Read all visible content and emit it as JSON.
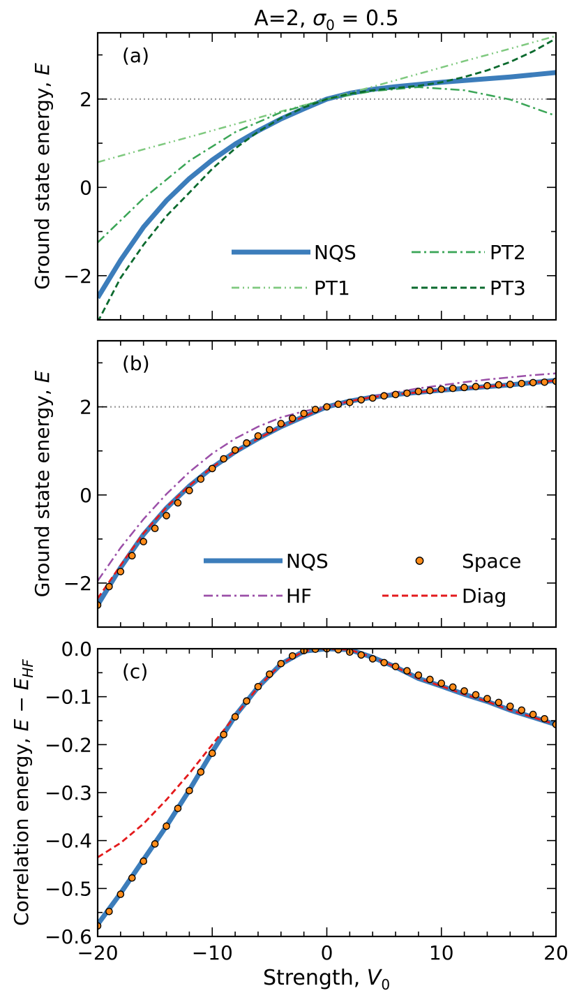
{
  "figure_title": "A=2, σ₀ = 0.5",
  "colors": {
    "nqs": "#3c7dbb",
    "pt1": "#7fc97f",
    "pt2": "#3aa556",
    "pt3": "#0b6a2e",
    "hf": "#9b4fa8",
    "diag": "#e31a1c",
    "space_fill": "#ff8c1a",
    "ref": "#999999"
  },
  "chart_data": [
    {
      "panel": "(a)",
      "type": "line",
      "xlabel": "Strength, V0",
      "ylabel": "Ground state energy, E",
      "xlim": [
        -20,
        20
      ],
      "ylim": [
        -3,
        3.5
      ],
      "yticks": [
        -2,
        0,
        2
      ],
      "ytick_labels": [
        "−2",
        "0",
        "2"
      ],
      "reference_line": {
        "y": 2,
        "style": "dotted"
      },
      "legend": {
        "placement": "lower-right",
        "columns": 2,
        "entries": [
          "NQS",
          "PT2",
          "PT1",
          "PT3"
        ]
      },
      "series": [
        {
          "name": "NQS",
          "style": "solid-thick",
          "color_key": "nqs",
          "x": [
            -20,
            -18,
            -16,
            -14,
            -12,
            -10,
            -8,
            -6,
            -4,
            -2,
            0,
            2,
            4,
            6,
            8,
            10,
            12,
            14,
            16,
            18,
            20
          ],
          "y": [
            -2.5,
            -1.65,
            -0.9,
            -0.3,
            0.2,
            0.62,
            0.98,
            1.28,
            1.55,
            1.78,
            2.0,
            2.13,
            2.22,
            2.28,
            2.33,
            2.38,
            2.42,
            2.46,
            2.5,
            2.55,
            2.6
          ]
        },
        {
          "name": "PT1",
          "style": "dash-dot-dot",
          "color_key": "pt1",
          "x": [
            -20,
            -16,
            -12,
            -8,
            -4,
            0,
            4,
            8,
            12,
            16,
            20
          ],
          "y": [
            0.57,
            0.86,
            1.14,
            1.43,
            1.72,
            2.0,
            2.28,
            2.57,
            2.86,
            3.14,
            3.43
          ]
        },
        {
          "name": "PT2",
          "style": "dash-dot",
          "color_key": "pt2",
          "x": [
            -20,
            -16,
            -12,
            -8,
            -4,
            0,
            4,
            8,
            12,
            16,
            20
          ],
          "y": [
            -1.25,
            -0.25,
            0.6,
            1.25,
            1.7,
            2.0,
            2.18,
            2.27,
            2.2,
            1.99,
            1.62
          ]
        },
        {
          "name": "PT3",
          "style": "dashed",
          "color_key": "pt3",
          "x": [
            -20,
            -18,
            -16,
            -14,
            -12,
            -10,
            -8,
            -6,
            -4,
            -2,
            0,
            2,
            4,
            6,
            8,
            10,
            12,
            14,
            16,
            18,
            20
          ],
          "y": [
            -3.05,
            -2.05,
            -1.3,
            -0.65,
            -0.12,
            0.42,
            0.88,
            1.26,
            1.57,
            1.81,
            2.0,
            2.12,
            2.2,
            2.25,
            2.3,
            2.38,
            2.5,
            2.65,
            2.84,
            3.08,
            3.37
          ]
        }
      ]
    },
    {
      "panel": "(b)",
      "type": "line",
      "xlabel": "Strength, V0",
      "ylabel": "Ground state energy, E",
      "xlim": [
        -20,
        20
      ],
      "ylim": [
        -3,
        3.5
      ],
      "yticks": [
        -2,
        0,
        2
      ],
      "ytick_labels": [
        "−2",
        "0",
        "2"
      ],
      "reference_line": {
        "y": 2,
        "style": "dotted"
      },
      "legend": {
        "placement": "lower-right",
        "columns": 2,
        "entries": [
          "NQS",
          "Space",
          "HF",
          "Diag"
        ]
      },
      "series": [
        {
          "name": "NQS",
          "style": "solid-thick",
          "color_key": "nqs",
          "x": [
            -20,
            -18,
            -16,
            -14,
            -12,
            -10,
            -8,
            -6,
            -4,
            -2,
            0,
            2,
            4,
            6,
            8,
            10,
            12,
            14,
            16,
            18,
            20
          ],
          "y": [
            -2.5,
            -1.65,
            -0.9,
            -0.3,
            0.2,
            0.62,
            0.98,
            1.28,
            1.55,
            1.78,
            2.0,
            2.13,
            2.22,
            2.28,
            2.33,
            2.38,
            2.42,
            2.46,
            2.5,
            2.55,
            2.6
          ]
        },
        {
          "name": "HF",
          "style": "dash-dot",
          "color_key": "hf",
          "x": [
            -20,
            -18,
            -16,
            -14,
            -12,
            -10,
            -8,
            -6,
            -4,
            -2,
            0,
            2,
            4,
            6,
            8,
            10,
            12,
            14,
            16,
            18,
            20
          ],
          "y": [
            -1.95,
            -1.2,
            -0.55,
            0.02,
            0.52,
            0.94,
            1.28,
            1.55,
            1.76,
            1.9,
            2.0,
            2.13,
            2.24,
            2.33,
            2.42,
            2.49,
            2.56,
            2.62,
            2.67,
            2.72,
            2.76
          ]
        },
        {
          "name": "Diag",
          "style": "dashed",
          "color_key": "diag",
          "x": [
            -20,
            -18,
            -16,
            -14,
            -12,
            -10,
            -8,
            -6,
            -4,
            -2,
            0,
            2,
            4,
            6,
            8,
            10,
            12,
            14,
            16,
            18,
            20
          ],
          "y": [
            -2.35,
            -1.6,
            -0.87,
            -0.28,
            0.21,
            0.63,
            0.98,
            1.28,
            1.55,
            1.78,
            2.0,
            2.13,
            2.22,
            2.28,
            2.33,
            2.38,
            2.42,
            2.46,
            2.5,
            2.55,
            2.6
          ]
        },
        {
          "name": "Space",
          "style": "markers",
          "color_key": "space_fill",
          "x": [
            -20,
            -19,
            -18,
            -17,
            -16,
            -15,
            -14,
            -13,
            -12,
            -11,
            -10,
            -9,
            -8,
            -7,
            -6,
            -5,
            -4,
            -3,
            -2,
            -1,
            0,
            1,
            2,
            3,
            4,
            5,
            6,
            7,
            8,
            9,
            10,
            11,
            12,
            13,
            14,
            15,
            16,
            17,
            18,
            19,
            20
          ],
          "y": [
            -2.5,
            -2.08,
            -1.74,
            -1.38,
            -1.06,
            -0.76,
            -0.47,
            -0.18,
            0.1,
            0.36,
            0.6,
            0.82,
            1.02,
            1.18,
            1.34,
            1.48,
            1.62,
            1.74,
            1.85,
            1.94,
            2.0,
            2.06,
            2.1,
            2.16,
            2.2,
            2.25,
            2.28,
            2.31,
            2.35,
            2.37,
            2.4,
            2.42,
            2.44,
            2.46,
            2.48,
            2.5,
            2.51,
            2.53,
            2.55,
            2.56,
            2.58
          ]
        }
      ]
    },
    {
      "panel": "(c)",
      "type": "line",
      "xlabel": "Strength, V0",
      "ylabel": "Correlation energy, E − E_HF",
      "xlim": [
        -20,
        20
      ],
      "ylim": [
        -0.6,
        0.0
      ],
      "yticks": [
        -0.6,
        -0.5,
        -0.4,
        -0.3,
        -0.2,
        -0.1,
        0.0
      ],
      "ytick_labels": [
        "−0.6",
        "−0.5",
        "−0.4",
        "−0.3",
        "−0.2",
        "−0.1",
        "0.0"
      ],
      "xticks": [
        -20,
        -10,
        0,
        10,
        20
      ],
      "xtick_labels": [
        "−20",
        "−10",
        "0",
        "10",
        "20"
      ],
      "series": [
        {
          "name": "NQS",
          "style": "solid-thick",
          "color_key": "nqs",
          "x": [
            -20,
            -18,
            -16,
            -14,
            -12,
            -10,
            -8,
            -6,
            -4,
            -2,
            0,
            2,
            4,
            6,
            8,
            10,
            12,
            14,
            16,
            18,
            20
          ],
          "y": [
            -0.575,
            -0.51,
            -0.44,
            -0.37,
            -0.295,
            -0.215,
            -0.14,
            -0.08,
            -0.032,
            -0.005,
            0.0,
            -0.002,
            -0.018,
            -0.038,
            -0.062,
            -0.078,
            -0.095,
            -0.11,
            -0.128,
            -0.143,
            -0.158
          ]
        },
        {
          "name": "Diag",
          "style": "dashed",
          "color_key": "diag",
          "x": [
            -20,
            -18,
            -16,
            -14,
            -12,
            -10,
            -8,
            -6,
            -4,
            -2,
            0,
            2,
            4,
            6,
            8,
            10,
            12,
            14,
            16,
            18,
            20
          ],
          "y": [
            -0.435,
            -0.405,
            -0.365,
            -0.315,
            -0.26,
            -0.2,
            -0.14,
            -0.08,
            -0.032,
            -0.005,
            0.0,
            -0.002,
            -0.018,
            -0.038,
            -0.062,
            -0.078,
            -0.095,
            -0.11,
            -0.128,
            -0.143,
            -0.158
          ]
        },
        {
          "name": "Space",
          "style": "markers",
          "color_key": "space_fill",
          "x": [
            -20,
            -19,
            -18,
            -17,
            -16,
            -15,
            -14,
            -13,
            -12,
            -11,
            -10,
            -9,
            -8,
            -7,
            -6,
            -5,
            -4,
            -3,
            -2,
            -1,
            0,
            1,
            2,
            3,
            4,
            5,
            6,
            7,
            8,
            9,
            10,
            11,
            12,
            13,
            14,
            15,
            16,
            17,
            18,
            19,
            20
          ],
          "y": [
            -0.578,
            -0.548,
            -0.512,
            -0.478,
            -0.443,
            -0.407,
            -0.37,
            -0.333,
            -0.296,
            -0.257,
            -0.218,
            -0.179,
            -0.142,
            -0.109,
            -0.079,
            -0.053,
            -0.031,
            -0.015,
            -0.004,
            -0.001,
            0.0,
            -0.002,
            -0.007,
            -0.013,
            -0.021,
            -0.029,
            -0.037,
            -0.046,
            -0.055,
            -0.064,
            -0.072,
            -0.08,
            -0.088,
            -0.096,
            -0.104,
            -0.112,
            -0.12,
            -0.128,
            -0.137,
            -0.146,
            -0.158
          ]
        }
      ]
    }
  ]
}
